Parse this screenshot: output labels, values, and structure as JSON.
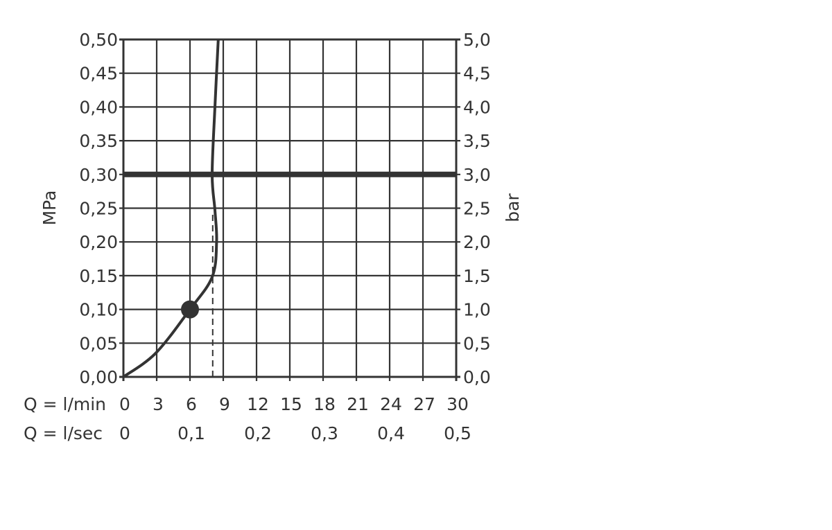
{
  "chart_data": {
    "type": "line",
    "title": "",
    "left_axis": {
      "label": "MPa",
      "range": [
        0,
        0.5
      ],
      "ticks": [
        "0,00",
        "0,05",
        "0,10",
        "0,15",
        "0,20",
        "0,25",
        "0,30",
        "0,35",
        "0,40",
        "0,45",
        "0,50"
      ]
    },
    "right_axis": {
      "label": "bar",
      "range": [
        0,
        5.0
      ],
      "ticks": [
        "0,0",
        "0,5",
        "1,0",
        "1,5",
        "2,0",
        "2,5",
        "3,0",
        "3,5",
        "4,0",
        "4,5",
        "5,0"
      ]
    },
    "x_axis": {
      "label": "Q = l/min",
      "range": [
        0,
        30
      ],
      "ticks": [
        "0",
        "3",
        "6",
        "9",
        "12",
        "15",
        "18",
        "21",
        "24",
        "27",
        "30"
      ],
      "tick_values": [
        0,
        3,
        6,
        9,
        12,
        15,
        18,
        21,
        24,
        27,
        30
      ]
    },
    "x_axis_secondary": {
      "label": "Q = l/sec",
      "ticks": [
        "0",
        "0,1",
        "0,2",
        "0,3",
        "0,4",
        "0,5"
      ],
      "tick_positions_lmin": [
        0,
        6,
        12,
        18,
        24,
        30
      ]
    },
    "grid": true,
    "series": [
      {
        "style": "solid-curve",
        "x": [
          0,
          2.9,
          6.0,
          8.0,
          8.4,
          8.25,
          8.0,
          8.25,
          8.55
        ],
        "y": [
          0,
          0.035,
          0.1,
          0.148,
          0.2,
          0.247,
          0.3,
          0.4,
          0.5
        ]
      }
    ],
    "marker": {
      "x": 6.0,
      "y": 0.1
    },
    "dashed_vertical": {
      "x": 8.05,
      "y_from": 0,
      "y_to": 0.245
    },
    "reference_line": {
      "y": 0.3
    },
    "color": "#333333"
  }
}
